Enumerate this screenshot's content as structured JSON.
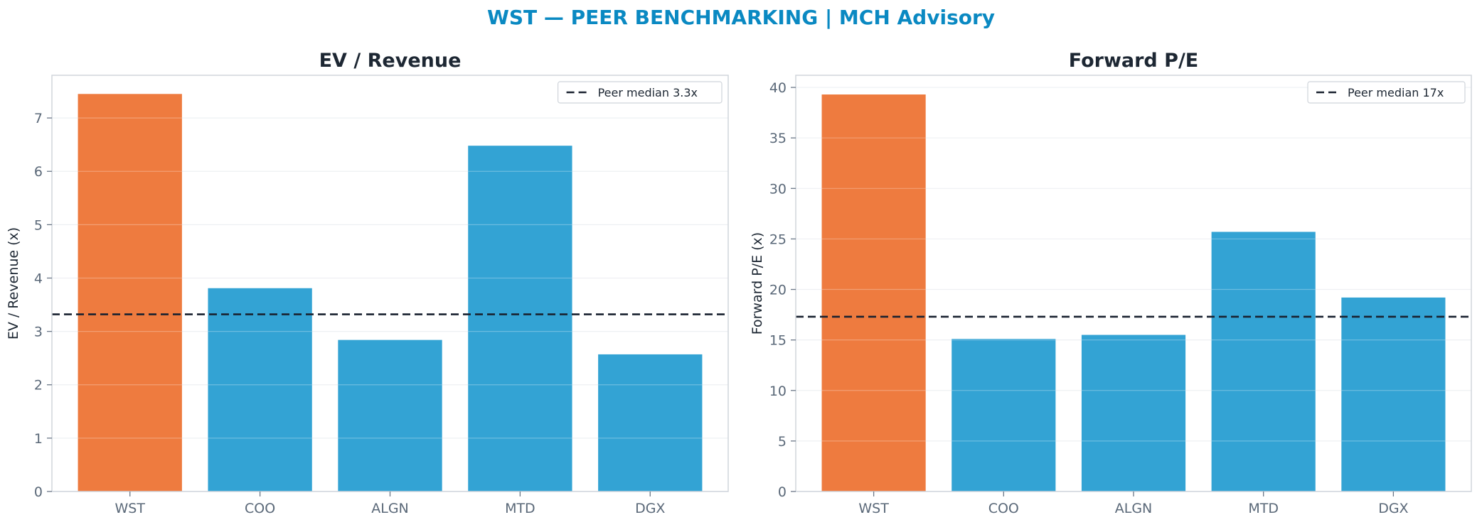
{
  "suptitle": "WST — PEER BENCHMARKING | MCH Advisory",
  "colors": {
    "highlight": "#ee7b3f",
    "peer": "#33a3d4",
    "median_line": "#1a2230",
    "suptitle": "#0a89c2"
  },
  "chart_data": [
    {
      "type": "bar",
      "title": "EV / Revenue",
      "ylabel": "EV / Revenue (x)",
      "xlabel": "",
      "categories": [
        "WST",
        "COO",
        "ALGN",
        "MTD",
        "DGX"
      ],
      "values": [
        7.45,
        3.81,
        2.84,
        6.48,
        2.57
      ],
      "highlight": "WST",
      "ylim": [
        0,
        7.8
      ],
      "yticks": [
        0,
        1,
        2,
        3,
        4,
        5,
        6,
        7
      ],
      "grid": true,
      "reference_line": {
        "label": "Peer median 3.3x",
        "value": 3.32
      },
      "legend": "top-right"
    },
    {
      "type": "bar",
      "title": "Forward P/E",
      "ylabel": "Forward P/E (x)",
      "xlabel": "",
      "categories": [
        "WST",
        "COO",
        "ALGN",
        "MTD",
        "DGX"
      ],
      "values": [
        39.3,
        15.1,
        15.5,
        25.7,
        19.2
      ],
      "highlight": "WST",
      "ylim": [
        0,
        41.2
      ],
      "yticks": [
        0,
        5,
        10,
        15,
        20,
        25,
        30,
        35,
        40
      ],
      "grid": true,
      "reference_line": {
        "label": "Peer median 17x",
        "value": 17.3
      },
      "legend": "top-right"
    }
  ]
}
